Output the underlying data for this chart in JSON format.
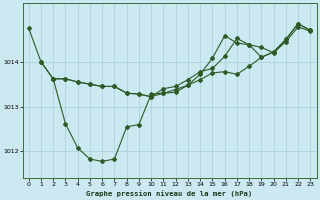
{
  "title": "Graphe pression niveau de la mer (hPa)",
  "background_color": "#cce8f0",
  "line_color": "#2d5a27",
  "grid_color": "#aaccd8",
  "xlim": [
    -0.5,
    23.5
  ],
  "ylim": [
    1011.4,
    1015.3
  ],
  "yticks": [
    1012,
    1013,
    1014
  ],
  "xticks": [
    0,
    1,
    2,
    3,
    4,
    5,
    6,
    7,
    8,
    9,
    10,
    11,
    12,
    13,
    14,
    15,
    16,
    17,
    18,
    19,
    20,
    21,
    22,
    23
  ],
  "series1_x": [
    0,
    1,
    2,
    3,
    4,
    5,
    6,
    7,
    8,
    9,
    10,
    11,
    12,
    13,
    14,
    15,
    16,
    17,
    18,
    19,
    20,
    21,
    22,
    23
  ],
  "series1_y": [
    1014.75,
    1014.0,
    1013.62,
    1013.62,
    1013.55,
    1013.5,
    1013.45,
    1013.45,
    1013.3,
    1013.28,
    1013.22,
    1013.3,
    1013.32,
    1013.48,
    1013.6,
    1013.75,
    1013.78,
    1013.72,
    1013.9,
    1014.1,
    1014.22,
    1014.5,
    1014.85,
    1014.7
  ],
  "series2_x": [
    1,
    2,
    3,
    4,
    5,
    6,
    7,
    8,
    9,
    10,
    11,
    12,
    13,
    14,
    15,
    16,
    17,
    18,
    19,
    20,
    21,
    22,
    23
  ],
  "series2_y": [
    1014.0,
    1013.62,
    1012.62,
    1012.08,
    1011.83,
    1011.78,
    1011.83,
    1012.55,
    1012.6,
    1013.28,
    1013.3,
    1013.38,
    1013.48,
    1013.72,
    1014.08,
    1014.58,
    1014.42,
    1014.38,
    1014.1,
    1014.22,
    1014.5,
    1014.85,
    1014.7
  ],
  "series3_x": [
    2,
    3,
    4,
    5,
    6,
    7,
    8,
    9,
    10,
    11,
    12,
    13,
    14,
    15,
    16,
    17,
    18,
    19,
    20,
    21,
    22,
    23
  ],
  "series3_y": [
    1013.62,
    1013.62,
    1013.55,
    1013.5,
    1013.45,
    1013.45,
    1013.3,
    1013.28,
    1013.22,
    1013.4,
    1013.45,
    1013.6,
    1013.78,
    1013.85,
    1014.12,
    1014.52,
    1014.38,
    1014.32,
    1014.2,
    1014.45,
    1014.78,
    1014.68
  ]
}
